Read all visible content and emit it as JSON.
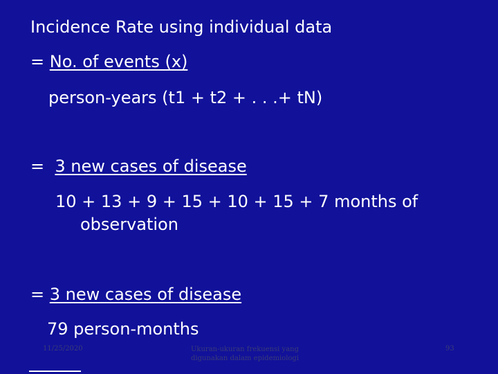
{
  "title": "Incidence Rate using individual data",
  "formula": {
    "prefix": "= ",
    "numerator": "No. of events (x)",
    "denominator": "person-years (t1 + t2 + . . .+ tN)"
  },
  "example": {
    "prefix": "=  ",
    "numerator": "3 new cases of disease",
    "denominator_line1": "10 + 13 + 9 + 15 + 10 + 15 + 7 months of",
    "denominator_line2": "observation"
  },
  "result": {
    "prefix": "= ",
    "numerator": "3 new cases of disease",
    "denominator": "79 person-months"
  },
  "footer": {
    "date": "11/25/2020",
    "center": "Ukuran-ukuran frekuensi yang digunakan dalam epidemiologi",
    "page": "93"
  }
}
